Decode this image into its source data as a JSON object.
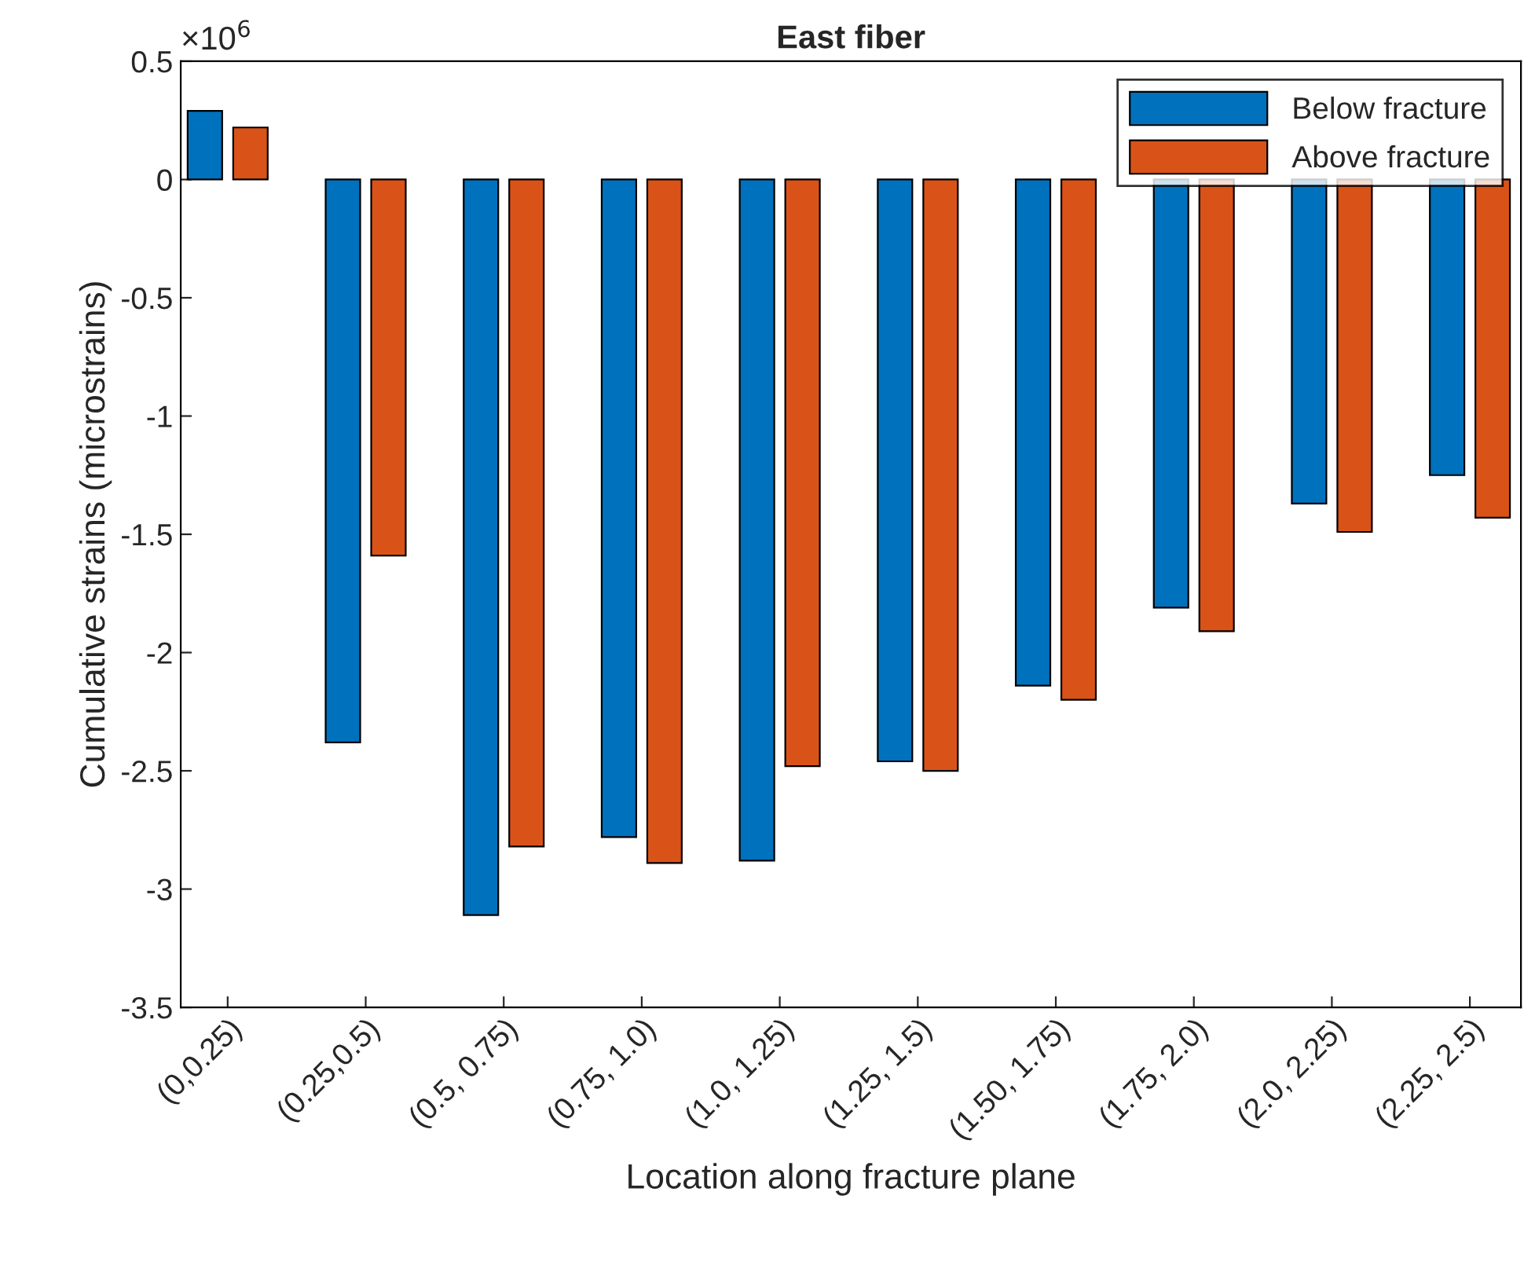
{
  "chart_data": {
    "type": "bar",
    "title": "East fiber",
    "xlabel": "Location along fracture plane",
    "ylabel": "Cumulative strains (microstrains)",
    "categories": [
      "(0,0.25)",
      "(0.25,0.5)",
      "(0.5, 0.75)",
      "(0.75, 1.0)",
      "(1.0, 1.25)",
      "(1.25, 1.5)",
      "(1.50, 1.75)",
      "(1.75, 2.0)",
      "(2.0, 2.25)",
      "(2.25, 2.5)"
    ],
    "series": [
      {
        "name": "Below fracture",
        "color": "#0072bd",
        "values": [
          0.29,
          -2.38,
          -3.11,
          -2.78,
          -2.88,
          -2.46,
          -2.14,
          -1.81,
          -1.37,
          -1.25
        ]
      },
      {
        "name": "Above fracture",
        "color": "#d95319",
        "values": [
          0.22,
          -1.59,
          -2.82,
          -2.89,
          -2.48,
          -2.5,
          -2.2,
          -1.91,
          -1.49,
          -1.43
        ]
      }
    ],
    "ylim": [
      -3.5,
      0.5
    ],
    "yticks": [
      -3.5,
      -3,
      -2.5,
      -2,
      -1.5,
      -1,
      -0.5,
      0,
      0.5
    ],
    "annotations": [
      "×10$^{6}$"
    ],
    "legend": "top right",
    "grid": false
  }
}
